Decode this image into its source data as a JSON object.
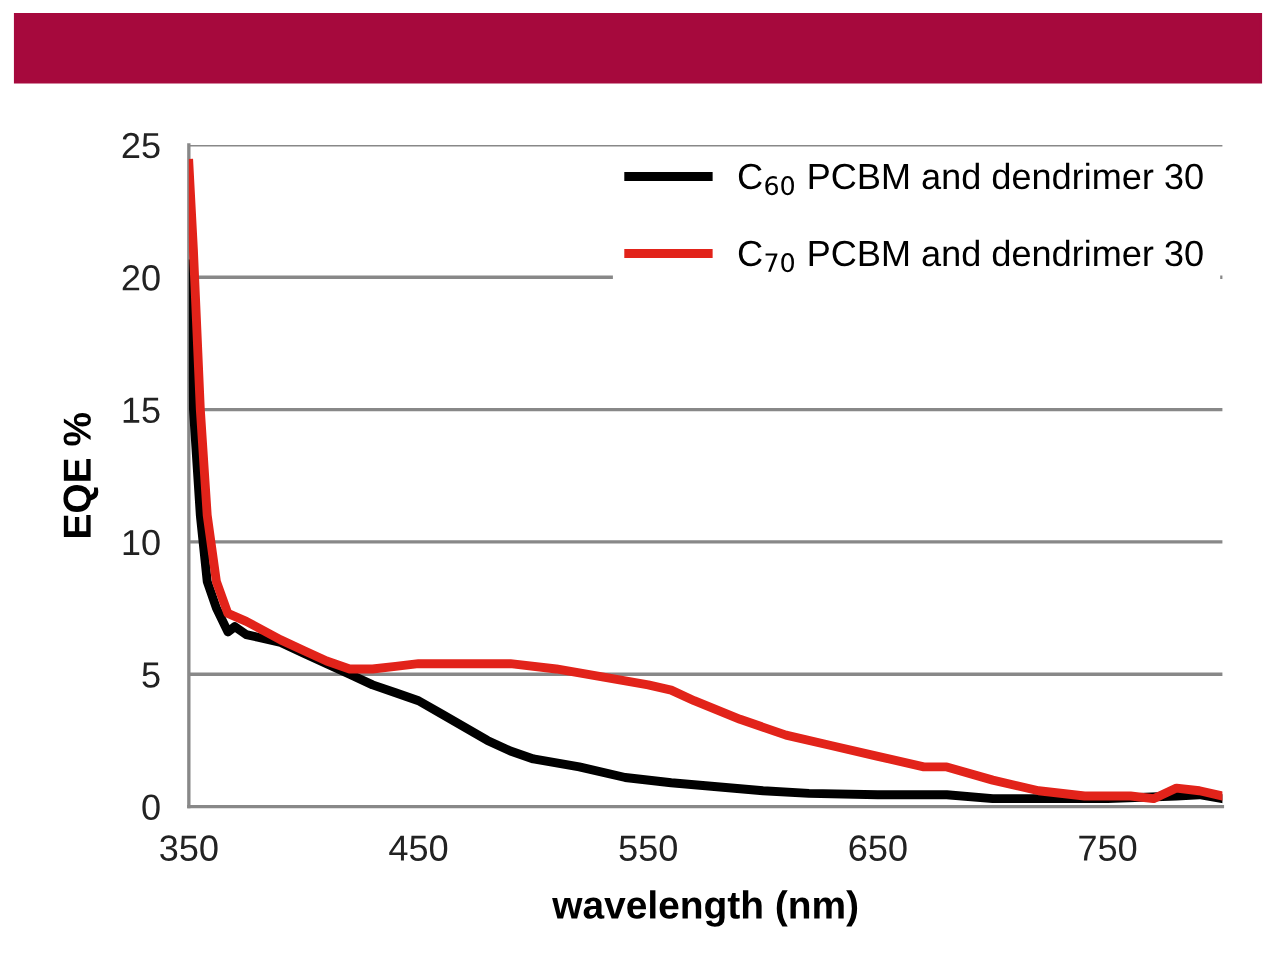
{
  "chart_data": {
    "type": "line",
    "xlabel": "wavelength (nm)",
    "ylabel": "EQE %",
    "xlim": [
      350,
      800
    ],
    "xticks": [
      350,
      450,
      550,
      650,
      750
    ],
    "ylim": [
      0,
      25
    ],
    "yticks": [
      0,
      5,
      10,
      15,
      20,
      25
    ],
    "grid": "y",
    "legend": "top right",
    "marker": "none",
    "line_style": "solid",
    "series": [
      {
        "name": "C$_{60}$ PCBM and dendrimer 30",
        "color": "#000000",
        "x": [
          350,
          352,
          355,
          358,
          362,
          367,
          370,
          375,
          380,
          390,
          400,
          410,
          420,
          430,
          440,
          450,
          460,
          470,
          480,
          490,
          500,
          520,
          540,
          560,
          580,
          600,
          620,
          650,
          680,
          700,
          720,
          750,
          780,
          790,
          800
        ],
        "values": [
          20.5,
          15,
          11,
          8.5,
          7.5,
          6.6,
          6.8,
          6.5,
          6.4,
          6.2,
          5.8,
          5.4,
          5.0,
          4.6,
          4.3,
          4.0,
          3.5,
          3.0,
          2.5,
          2.1,
          1.8,
          1.5,
          1.1,
          0.9,
          0.75,
          0.6,
          0.5,
          0.45,
          0.45,
          0.3,
          0.3,
          0.3,
          0.4,
          0.45,
          0.3
        ]
      },
      {
        "name": "C$_{70}$ PCBM and dendrimer 30",
        "color": "#e2231a",
        "x": [
          350,
          352,
          355,
          358,
          362,
          367,
          375,
          390,
          400,
          410,
          420,
          430,
          440,
          450,
          470,
          490,
          510,
          530,
          550,
          560,
          570,
          590,
          610,
          630,
          650,
          670,
          680,
          700,
          720,
          740,
          760,
          770,
          780,
          790,
          800
        ],
        "values": [
          24.3,
          21,
          15,
          11,
          8.5,
          7.3,
          7.0,
          6.3,
          5.9,
          5.5,
          5.2,
          5.2,
          5.3,
          5.4,
          5.4,
          5.4,
          5.2,
          4.9,
          4.6,
          4.4,
          4.0,
          3.3,
          2.7,
          2.3,
          1.9,
          1.5,
          1.5,
          1.0,
          0.6,
          0.4,
          0.4,
          0.3,
          0.7,
          0.6,
          0.4
        ]
      }
    ]
  }
}
